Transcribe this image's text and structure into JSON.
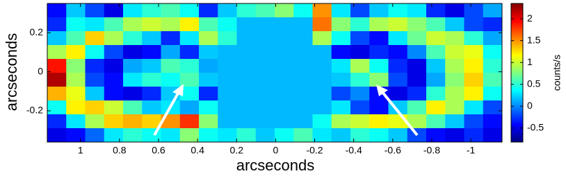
{
  "chart_data": {
    "type": "heatmap",
    "xlabel": "arcseconds",
    "ylabel": "arcseconds",
    "colorbar_label": "counts/s",
    "xlim": [
      1.17,
      -1.16
    ],
    "ylim": [
      -0.36,
      0.35
    ],
    "xticks": [
      1,
      0.8,
      0.6,
      0.4,
      0.2,
      0,
      -0.2,
      -0.4,
      -0.6,
      -0.8,
      -1
    ],
    "yticks": [
      0.2,
      0,
      -0.2
    ],
    "clim": [
      -0.82,
      2.35
    ],
    "colorbar_ticks": [
      2,
      1.5,
      1,
      0.5,
      0,
      -0.5
    ],
    "colormap": "jet",
    "z": [
      [
        -0.4,
        0.2,
        -0.2,
        -0.5,
        0.3,
        0.5,
        0.6,
        0.4,
        -0.3,
        0.2,
        0.5,
        0.6,
        0.8,
        0.4,
        1.5,
        0.3,
        -0.2,
        0.2,
        0.4,
        0.3,
        -0.3,
        -0.5,
        -0.2,
        0.1
      ],
      [
        -0.3,
        0.4,
        0.3,
        0.6,
        0.9,
        1.0,
        0.9,
        1.2,
        0.6,
        0.4,
        0.15,
        0.15,
        0.15,
        0.15,
        1.6,
        0.8,
        0.5,
        0.9,
        1.0,
        0.8,
        0.6,
        0.2,
        -0.2,
        -0.3
      ],
      [
        0.2,
        0.6,
        1.3,
        0.9,
        0.5,
        0.2,
        -0.3,
        0.3,
        0.9,
        0.5,
        0.15,
        0.15,
        0.15,
        0.15,
        0.9,
        0.4,
        -0.2,
        -0.4,
        0.3,
        0.7,
        1.0,
        0.9,
        0.5,
        0.1
      ],
      [
        0.9,
        1.2,
        0.4,
        -0.2,
        -0.5,
        -0.4,
        0.1,
        -0.3,
        0.2,
        0.15,
        0.15,
        0.15,
        0.15,
        0.15,
        0.15,
        -0.4,
        -0.5,
        -0.3,
        -0.4,
        0,
        0.6,
        1.0,
        1.1,
        0.4
      ],
      [
        1.9,
        0.8,
        -0.3,
        -0.5,
        0.1,
        0.2,
        0.6,
        0.5,
        0.1,
        0.15,
        0.15,
        0.15,
        0.15,
        0.15,
        0.15,
        0.3,
        0.9,
        0.4,
        -0.3,
        -0.5,
        0.2,
        0.9,
        1.2,
        0.5
      ],
      [
        2.2,
        0.9,
        -0.2,
        -0.4,
        0.3,
        0.5,
        0.4,
        0.6,
        0.2,
        0.15,
        0.15,
        0.15,
        0.15,
        0.15,
        0.15,
        0.2,
        0.5,
        0.8,
        -0.2,
        -0.5,
        0.1,
        0.8,
        1.3,
        0.6
      ],
      [
        1.4,
        1.1,
        0.2,
        -0.4,
        -0.5,
        -0.3,
        0.2,
        0.4,
        -0.3,
        0.15,
        0.15,
        0.15,
        0.15,
        0.15,
        0.15,
        -0.2,
        0,
        -0.4,
        -0.5,
        -0.3,
        0.5,
        0.9,
        1.2,
        0.4
      ],
      [
        0.4,
        1.2,
        1.3,
        1.0,
        0.6,
        0.2,
        0.3,
        0.1,
        0.4,
        0.15,
        0.15,
        0.15,
        0.15,
        0.15,
        0.15,
        0.3,
        -0.2,
        -0.4,
        0.2,
        0.6,
        1.2,
        0.9,
        0.3,
        -0.2
      ],
      [
        -0.3,
        0.3,
        0.9,
        1.3,
        1.4,
        1.3,
        1.5,
        1.8,
        0.8,
        0.15,
        0.15,
        0.15,
        0.15,
        0.15,
        0.4,
        0.9,
        1.0,
        1.2,
        1.1,
        0.9,
        0.6,
        0.2,
        -0.2,
        -0.4
      ],
      [
        -0.5,
        -0.4,
        -0.1,
        0.3,
        0.5,
        0.4,
        0.3,
        0.8,
        0.4,
        0.3,
        0.5,
        0.2,
        0.4,
        0.6,
        0.3,
        0.2,
        0.5,
        0.4,
        0.2,
        -0.2,
        -0.4,
        -0.5,
        -0.3,
        -0.5
      ]
    ]
  }
}
